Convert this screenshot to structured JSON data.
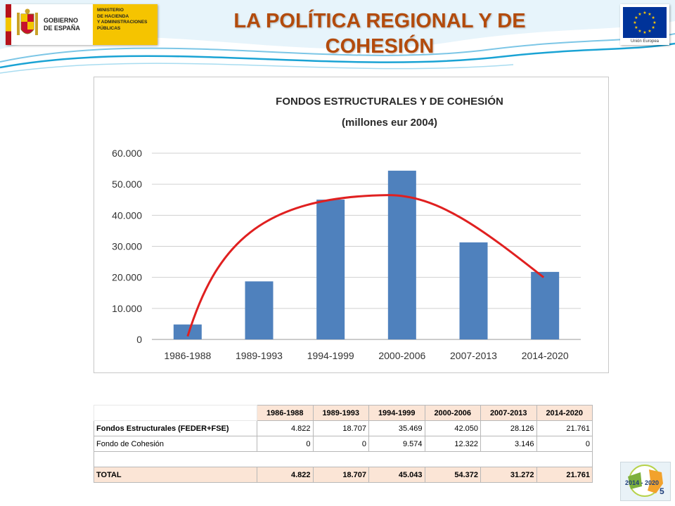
{
  "header": {
    "title_line1": "LA POLÍTICA REGIONAL Y DE",
    "title_line2": "COHESIÓN",
    "gov_logo": {
      "name": "GOBIERNO\nDE ESPAÑA",
      "ministry": "MINISTERIO\nDE HACIENDA\nY ADMINISTRACIONES\nPÚBLICAS"
    },
    "eu_logo": {
      "caption": "Unión Europea"
    }
  },
  "chart_data": {
    "type": "bar",
    "title": "FONDOS ESTRUCTURALES Y DE COHESIÓN",
    "subtitle": "(millones eur 2004)",
    "categories": [
      "1986-1988",
      "1989-1993",
      "1994-1999",
      "2000-2006",
      "2007-2013",
      "2014-2020"
    ],
    "values": [
      4822,
      18707,
      45043,
      54372,
      31272,
      21761
    ],
    "ylim": [
      0,
      60000
    ],
    "yticks": [
      0,
      10000,
      20000,
      30000,
      40000,
      50000,
      60000
    ],
    "ytick_labels": [
      "0",
      "10.000",
      "20.000",
      "30.000",
      "40.000",
      "50.000",
      "60.000"
    ],
    "grid": true,
    "bar_color": "#4f81bd",
    "trend_color": "#e02020",
    "trend_curve": "red arc over bars, from 1986-1988 (~1,000) peaking near 2000-2006 (~46,500) down to 2014-2020 (~20,000)"
  },
  "table": {
    "headers": [
      "1986-1988",
      "1989-1993",
      "1994-1999",
      "2000-2006",
      "2007-2013",
      "2014-2020"
    ],
    "rows": [
      {
        "label": "Fondos Estructurales (FEDER+FSE)",
        "values": [
          "4.822",
          "18.707",
          "35.469",
          "42.050",
          "28.126",
          "21.761"
        ]
      },
      {
        "label": "Fondo de Cohesión",
        "values": [
          "0",
          "0",
          "9.574",
          "12.322",
          "3.146",
          "0"
        ]
      },
      {
        "label": "TOTAL",
        "values": [
          "4.822",
          "18.707",
          "45.043",
          "54.372",
          "31.272",
          "21.761"
        ]
      }
    ]
  },
  "footer": {
    "page_number": "5",
    "logo_text": "2014 - 2020"
  },
  "colors": {
    "title": "#b34b0c",
    "header_fill": "#fbe5d6",
    "accent_blue": "#1aa3d4"
  }
}
